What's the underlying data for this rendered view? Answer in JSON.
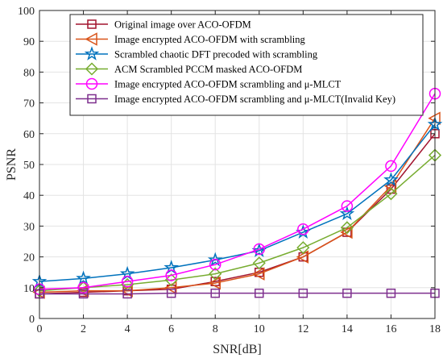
{
  "chart_data": {
    "type": "line",
    "xlabel": "SNR[dB]",
    "ylabel": "PSNR",
    "xlim": [
      0,
      18
    ],
    "ylim": [
      0,
      100
    ],
    "xticks": [
      "0",
      "2",
      "4",
      "6",
      "8",
      "10",
      "12",
      "14",
      "16",
      "18"
    ],
    "yticks": [
      "0",
      "10",
      "20",
      "30",
      "40",
      "50",
      "60",
      "70",
      "80",
      "90",
      "100"
    ],
    "grid": true,
    "legend_position": "top-left",
    "x": [
      0,
      2,
      4,
      6,
      8,
      10,
      12,
      14,
      16,
      18
    ],
    "series": [
      {
        "name": "Original image over ACO-OFDM",
        "color": "#A2142F",
        "marker": "square",
        "values": [
          8,
          8.5,
          9,
          9.5,
          12,
          15,
          20,
          28,
          42,
          60
        ]
      },
      {
        "name": "Image encrypted ACO-OFDM with scrambling",
        "color": "#D95319",
        "marker": "triangle-left",
        "values": [
          8.5,
          9,
          9,
          10,
          11.5,
          14.5,
          20,
          28,
          43,
          65
        ]
      },
      {
        "name": "Scrambled chaotic DFT precoded with scrambling",
        "color": "#0072BD",
        "marker": "star",
        "values": [
          12,
          13,
          14.5,
          16.5,
          19,
          22,
          28,
          34,
          45,
          63
        ]
      },
      {
        "name": "ACM Scrambled PCCM masked ACO-OFDM",
        "color": "#77AC30",
        "marker": "diamond",
        "values": [
          9,
          10,
          11,
          12.5,
          14.5,
          18,
          23,
          29.5,
          40.5,
          53
        ]
      },
      {
        "name": "Image encrypted ACO-OFDM scrambling and μ-MLCT",
        "color": "#FF00FF",
        "marker": "circle",
        "values": [
          9.5,
          10,
          12,
          14,
          17.5,
          22.5,
          29,
          36.5,
          49.5,
          73
        ]
      },
      {
        "name": "Image encrypted ACO-OFDM scrambling and μ-MLCT(Invalid Key)",
        "color": "#7E2F8E",
        "marker": "square",
        "values": [
          8,
          8,
          8,
          8.2,
          8.2,
          8.2,
          8.2,
          8.2,
          8.2,
          8.2
        ]
      }
    ]
  }
}
